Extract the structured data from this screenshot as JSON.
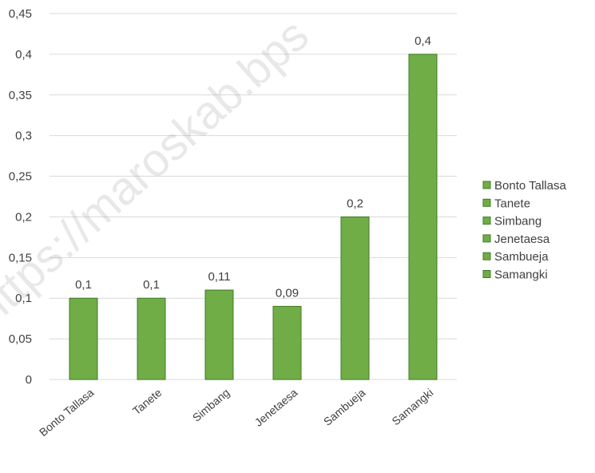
{
  "chart_data": {
    "type": "bar",
    "title": "",
    "xlabel": "",
    "ylabel": "",
    "categories": [
      "Bonto Tallasa",
      "Tanete",
      "Simbang",
      "Jenetaesa",
      "Sambueja",
      "Samangki"
    ],
    "values": [
      0.1,
      0.1,
      0.11,
      0.09,
      0.2,
      0.4
    ],
    "data_labels": [
      "0,1",
      "0,1",
      "0,11",
      "0,09",
      "0,2",
      "0,4"
    ],
    "ylim": [
      0,
      0.45
    ],
    "y_ticks": [
      0,
      0.05,
      0.1,
      0.15,
      0.2,
      0.25,
      0.3,
      0.35,
      0.4,
      0.45
    ],
    "y_tick_labels": [
      "0",
      "0,05",
      "0,1",
      "0,15",
      "0,2",
      "0,25",
      "0,3",
      "0,35",
      "0,4",
      "0,45"
    ],
    "grid": true,
    "legend": {
      "position": "right",
      "entries": [
        "Bonto Tallasa",
        "Tanete",
        "Simbang",
        "Jenetaesa",
        "Sambueja",
        "Samangki"
      ]
    },
    "colors": {
      "bar_fill": "#70AD47",
      "bar_stroke": "#3F7A24",
      "grid": "#D9D9D9",
      "text": "#404040"
    }
  },
  "watermark": {
    "text": "https://maroskab.bps"
  }
}
